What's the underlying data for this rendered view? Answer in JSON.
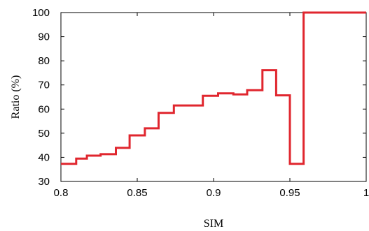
{
  "chart_data": {
    "type": "line",
    "title": "",
    "xlabel": "SIM",
    "ylabel": "Ratio (%)",
    "xlim": [
      0.8,
      1.0
    ],
    "ylim": [
      30,
      100
    ],
    "xticks": [
      "0.8",
      "0.85",
      "0.9",
      "0.95",
      "1"
    ],
    "yticks": [
      "30",
      "40",
      "50",
      "60",
      "70",
      "80",
      "90",
      "100"
    ],
    "grid": false,
    "legend": "none",
    "color": "#e0262e",
    "step_points": [
      [
        0.8,
        37.3
      ],
      [
        0.81,
        37.3
      ],
      [
        0.81,
        39.5
      ],
      [
        0.817,
        39.5
      ],
      [
        0.817,
        40.7
      ],
      [
        0.826,
        40.7
      ],
      [
        0.826,
        41.3
      ],
      [
        0.836,
        41.3
      ],
      [
        0.836,
        43.9
      ],
      [
        0.845,
        43.9
      ],
      [
        0.845,
        49.1
      ],
      [
        0.855,
        49.1
      ],
      [
        0.855,
        52.0
      ],
      [
        0.864,
        52.0
      ],
      [
        0.864,
        58.4
      ],
      [
        0.874,
        58.4
      ],
      [
        0.874,
        61.5
      ],
      [
        0.893,
        61.5
      ],
      [
        0.893,
        65.5
      ],
      [
        0.903,
        65.5
      ],
      [
        0.903,
        66.5
      ],
      [
        0.913,
        66.5
      ],
      [
        0.913,
        66.1
      ],
      [
        0.922,
        66.1
      ],
      [
        0.922,
        67.8
      ],
      [
        0.932,
        67.8
      ],
      [
        0.932,
        76.1
      ],
      [
        0.941,
        76.1
      ],
      [
        0.941,
        65.7
      ],
      [
        0.95,
        65.7
      ],
      [
        0.95,
        37.3
      ],
      [
        0.959,
        37.3
      ],
      [
        0.959,
        100.0
      ],
      [
        1.0,
        100.0
      ]
    ]
  }
}
